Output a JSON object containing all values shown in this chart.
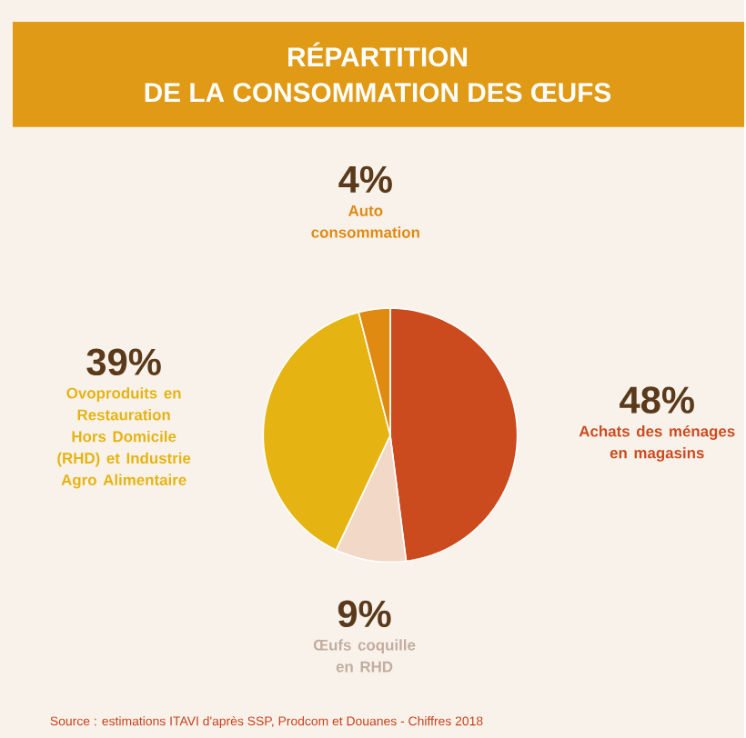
{
  "chart_data": {
    "type": "pie",
    "title": "RÉPARTITION",
    "subtitle": "DE LA CONSOMMATION DES ŒUFS",
    "categories": [
      "Achats des ménages en magasins",
      "Œufs coquille en RHD",
      "Ovoproduits en Restauration Hors Domicile (RHD) et Industrie Agro Alimentaire",
      "Auto consommation"
    ],
    "values": [
      48,
      9,
      39,
      4
    ],
    "value_labels": [
      "48%",
      "9%",
      "39%",
      "4%"
    ],
    "colors": [
      "#cc4b1e",
      "#f2d8c6",
      "#e6b412",
      "#e08a12"
    ],
    "annotations": [
      "Source : estimations ITAVI d'après SSP, Prodcom et Douanes - Chiffres 2018"
    ]
  }
}
